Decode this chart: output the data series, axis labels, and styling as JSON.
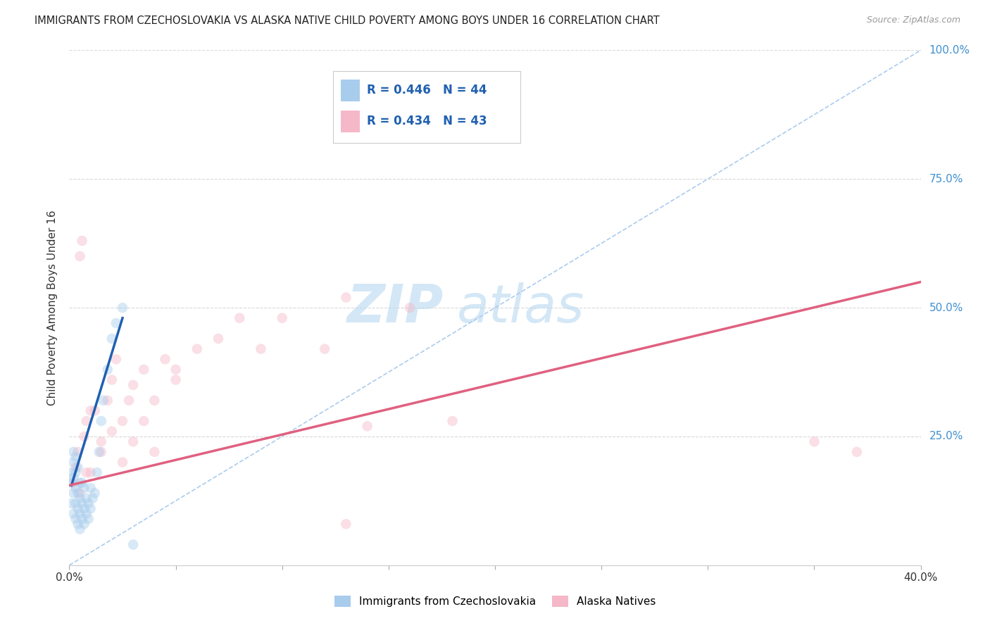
{
  "title": "IMMIGRANTS FROM CZECHOSLOVAKIA VS ALASKA NATIVE CHILD POVERTY AMONG BOYS UNDER 16 CORRELATION CHART",
  "source": "Source: ZipAtlas.com",
  "ylabel": "Child Poverty Among Boys Under 16",
  "xmin": 0.0,
  "xmax": 0.4,
  "ymin": 0.0,
  "ymax": 1.0,
  "xticks": [
    0.0,
    0.05,
    0.1,
    0.15,
    0.2,
    0.25,
    0.3,
    0.35,
    0.4
  ],
  "yticks": [
    0.0,
    0.25,
    0.5,
    0.75,
    1.0
  ],
  "blue_R": 0.446,
  "blue_N": 44,
  "pink_R": 0.434,
  "pink_N": 43,
  "blue_label": "Immigrants from Czechoslovakia",
  "pink_label": "Alaska Natives",
  "blue_color": "#a8ccec",
  "pink_color": "#f5b8c8",
  "blue_line_color": "#2060b0",
  "pink_line_color": "#e06080",
  "legend_R_color": "#2060b0",
  "watermark_zip": "ZIP",
  "watermark_atlas": "atlas",
  "blue_scatter_x": [
    0.001,
    0.001,
    0.001,
    0.002,
    0.002,
    0.002,
    0.002,
    0.002,
    0.003,
    0.003,
    0.003,
    0.003,
    0.003,
    0.004,
    0.004,
    0.004,
    0.004,
    0.005,
    0.005,
    0.005,
    0.005,
    0.006,
    0.006,
    0.006,
    0.007,
    0.007,
    0.007,
    0.008,
    0.008,
    0.009,
    0.009,
    0.01,
    0.01,
    0.011,
    0.012,
    0.013,
    0.014,
    0.015,
    0.016,
    0.018,
    0.02,
    0.022,
    0.025,
    0.03
  ],
  "blue_scatter_y": [
    0.12,
    0.16,
    0.18,
    0.1,
    0.14,
    0.17,
    0.2,
    0.22,
    0.09,
    0.12,
    0.15,
    0.18,
    0.21,
    0.08,
    0.11,
    0.14,
    0.19,
    0.07,
    0.1,
    0.13,
    0.16,
    0.09,
    0.12,
    0.16,
    0.08,
    0.11,
    0.15,
    0.1,
    0.13,
    0.09,
    0.12,
    0.11,
    0.15,
    0.13,
    0.14,
    0.18,
    0.22,
    0.28,
    0.32,
    0.38,
    0.44,
    0.47,
    0.5,
    0.04
  ],
  "pink_scatter_x": [
    0.002,
    0.003,
    0.004,
    0.005,
    0.006,
    0.007,
    0.008,
    0.01,
    0.012,
    0.015,
    0.018,
    0.02,
    0.022,
    0.025,
    0.028,
    0.03,
    0.035,
    0.04,
    0.045,
    0.05,
    0.06,
    0.07,
    0.08,
    0.09,
    0.1,
    0.12,
    0.13,
    0.14,
    0.16,
    0.18,
    0.005,
    0.008,
    0.01,
    0.015,
    0.02,
    0.025,
    0.03,
    0.035,
    0.04,
    0.05,
    0.35,
    0.37,
    0.13
  ],
  "pink_scatter_y": [
    0.16,
    0.19,
    0.22,
    0.6,
    0.63,
    0.25,
    0.28,
    0.18,
    0.3,
    0.24,
    0.32,
    0.36,
    0.4,
    0.28,
    0.32,
    0.35,
    0.38,
    0.22,
    0.4,
    0.38,
    0.42,
    0.44,
    0.48,
    0.42,
    0.48,
    0.42,
    0.52,
    0.27,
    0.5,
    0.28,
    0.14,
    0.18,
    0.3,
    0.22,
    0.26,
    0.2,
    0.24,
    0.28,
    0.32,
    0.36,
    0.24,
    0.22,
    0.08
  ],
  "blue_trend_x0": 0.001,
  "blue_trend_x1": 0.025,
  "blue_trend_y0": 0.155,
  "blue_trend_y1": 0.48,
  "pink_trend_x0": 0.0,
  "pink_trend_x1": 0.4,
  "pink_trend_y0": 0.155,
  "pink_trend_y1": 0.55,
  "diag_color": "#aaccee",
  "background_color": "#ffffff",
  "grid_color": "#d0d0d0",
  "marker_size": 110,
  "marker_alpha": 0.45
}
